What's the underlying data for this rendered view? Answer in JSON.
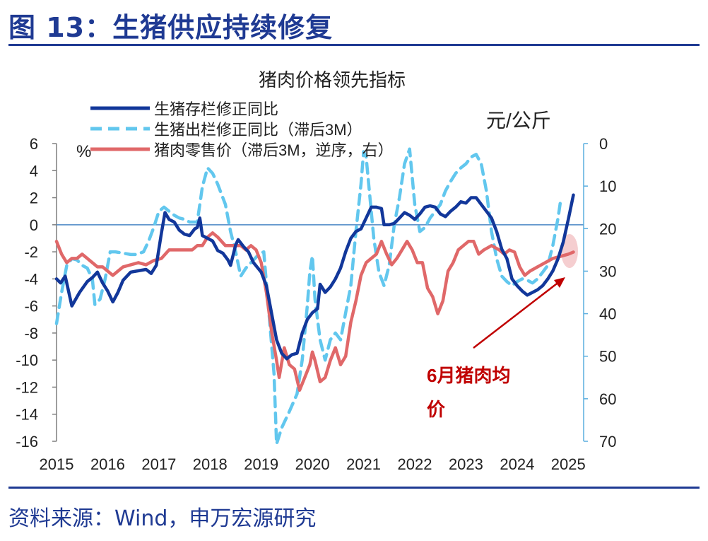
{
  "figure_title": "图 13：生猪供应持续修复",
  "source_note": "资料来源：Wind，申万宏源研究",
  "colors": {
    "accent": "#1f3a93",
    "series_inventory": "#12379a",
    "series_slaughter": "#62c7ee",
    "series_price": "#e06869",
    "annotation": "#c00000",
    "right_axis": "#5aaedf",
    "highlight": "#f3c5c8"
  },
  "annotation": {
    "line1": "6月猪肉均",
    "line2": "价"
  },
  "chart_data": {
    "type": "line",
    "title": "猪肉价格领先指标",
    "x_ticks": [
      "2015",
      "2016",
      "2017",
      "2018",
      "2019",
      "2020",
      "2021",
      "2022",
      "2023",
      "2024",
      "2025"
    ],
    "y_left": {
      "unit": "%",
      "ticks": [
        "6",
        "4",
        "2",
        "0",
        "-2",
        "-4",
        "-6",
        "-8",
        "-10",
        "-12",
        "-14",
        "-16"
      ],
      "range": [
        -16,
        6
      ]
    },
    "y_right": {
      "unit": "元/公斤",
      "ticks": [
        "0",
        "10",
        "20",
        "30",
        "40",
        "50",
        "60",
        "70"
      ],
      "range": [
        0,
        70
      ],
      "inverted": true
    },
    "series": [
      {
        "name": "生猪存栏修正同比",
        "axis": "left",
        "style": "solid",
        "points": [
          [
            2015.0,
            -4.0
          ],
          [
            2015.08,
            -4.3
          ],
          [
            2015.17,
            -3.8
          ],
          [
            2015.3,
            -6.0
          ],
          [
            2015.45,
            -5.0
          ],
          [
            2015.6,
            -4.2
          ],
          [
            2015.7,
            -3.9
          ],
          [
            2015.8,
            -3.5
          ],
          [
            2015.9,
            -4.3
          ],
          [
            2016.0,
            -4.9
          ],
          [
            2016.1,
            -5.7
          ],
          [
            2016.2,
            -5.0
          ],
          [
            2016.3,
            -4.1
          ],
          [
            2016.45,
            -3.5
          ],
          [
            2016.6,
            -3.4
          ],
          [
            2016.75,
            -3.3
          ],
          [
            2016.85,
            -3.6
          ],
          [
            2016.95,
            -3.0
          ],
          [
            2017.05,
            -0.6
          ],
          [
            2017.12,
            0.9
          ],
          [
            2017.2,
            0.4
          ],
          [
            2017.3,
            0.2
          ],
          [
            2017.4,
            -0.4
          ],
          [
            2017.5,
            -0.7
          ],
          [
            2017.6,
            -0.8
          ],
          [
            2017.7,
            -0.3
          ],
          [
            2017.75,
            -0.2
          ],
          [
            2017.8,
            0.5
          ],
          [
            2017.85,
            -0.8
          ],
          [
            2017.95,
            -1.0
          ],
          [
            2018.05,
            -1.2
          ],
          [
            2018.15,
            -1.9
          ],
          [
            2018.25,
            -2.1
          ],
          [
            2018.35,
            -2.6
          ],
          [
            2018.4,
            -3.0
          ],
          [
            2018.5,
            -1.5
          ],
          [
            2018.55,
            -1.1
          ],
          [
            2018.65,
            -1.6
          ],
          [
            2018.75,
            -2.0
          ],
          [
            2018.85,
            -2.8
          ],
          [
            2019.0,
            -3.5
          ],
          [
            2019.1,
            -4.5
          ],
          [
            2019.2,
            -6.5
          ],
          [
            2019.3,
            -8.5
          ],
          [
            2019.4,
            -9.5
          ],
          [
            2019.5,
            -9.9
          ],
          [
            2019.6,
            -9.6
          ],
          [
            2019.7,
            -9.5
          ],
          [
            2019.8,
            -8.0
          ],
          [
            2019.9,
            -7.0
          ],
          [
            2020.0,
            -6.5
          ],
          [
            2020.1,
            -6.2
          ],
          [
            2020.15,
            -4.4
          ],
          [
            2020.25,
            -5.0
          ],
          [
            2020.35,
            -4.6
          ],
          [
            2020.45,
            -4.0
          ],
          [
            2020.55,
            -3.2
          ],
          [
            2020.65,
            -2.0
          ],
          [
            2020.75,
            -1.0
          ],
          [
            2020.85,
            -0.5
          ],
          [
            2020.95,
            -0.3
          ],
          [
            2021.05,
            0.5
          ],
          [
            2021.15,
            1.3
          ],
          [
            2021.25,
            1.3
          ],
          [
            2021.35,
            1.2
          ],
          [
            2021.4,
            0.0
          ],
          [
            2021.5,
            0.0
          ],
          [
            2021.6,
            0.1
          ],
          [
            2021.7,
            0.5
          ],
          [
            2021.8,
            0.9
          ],
          [
            2021.9,
            0.7
          ],
          [
            2022.0,
            0.4
          ],
          [
            2022.1,
            0.8
          ],
          [
            2022.2,
            1.3
          ],
          [
            2022.3,
            1.4
          ],
          [
            2022.4,
            1.3
          ],
          [
            2022.5,
            0.8
          ],
          [
            2022.6,
            0.6
          ],
          [
            2022.7,
            1.0
          ],
          [
            2022.8,
            1.3
          ],
          [
            2022.9,
            1.7
          ],
          [
            2023.0,
            1.6
          ],
          [
            2023.1,
            2.0
          ],
          [
            2023.2,
            2.0
          ],
          [
            2023.3,
            1.5
          ],
          [
            2023.4,
            1.0
          ],
          [
            2023.5,
            0.5
          ],
          [
            2023.6,
            -0.5
          ],
          [
            2023.7,
            -1.8
          ],
          [
            2023.8,
            -2.5
          ],
          [
            2023.9,
            -4.0
          ],
          [
            2024.0,
            -4.5
          ],
          [
            2024.1,
            -4.9
          ],
          [
            2024.2,
            -5.2
          ],
          [
            2024.3,
            -5.0
          ],
          [
            2024.4,
            -4.8
          ],
          [
            2024.5,
            -4.5
          ],
          [
            2024.6,
            -4.0
          ],
          [
            2024.7,
            -3.4
          ],
          [
            2024.8,
            -2.5
          ],
          [
            2024.9,
            -1.3
          ],
          [
            2025.0,
            0.4
          ],
          [
            2025.1,
            2.2
          ]
        ]
      },
      {
        "name": "生猪出栏修正同比（滞后3M）",
        "axis": "left",
        "style": "dashed",
        "points": [
          [
            2015.0,
            -7.3
          ],
          [
            2015.1,
            -5.0
          ],
          [
            2015.2,
            -3.0
          ],
          [
            2015.3,
            -2.5
          ],
          [
            2015.4,
            -2.6
          ],
          [
            2015.5,
            -3.0
          ],
          [
            2015.6,
            -3.2
          ],
          [
            2015.7,
            -4.0
          ],
          [
            2015.75,
            -5.9
          ],
          [
            2015.85,
            -5.5
          ],
          [
            2015.95,
            -4.0
          ],
          [
            2016.05,
            -2.0
          ],
          [
            2016.15,
            -2.0
          ],
          [
            2016.3,
            -2.1
          ],
          [
            2016.45,
            -2.2
          ],
          [
            2016.55,
            -2.2
          ],
          [
            2016.7,
            -2.0
          ],
          [
            2016.8,
            -1.2
          ],
          [
            2016.9,
            -0.2
          ],
          [
            2017.0,
            1.0
          ],
          [
            2017.1,
            1.3
          ],
          [
            2017.2,
            1.0
          ],
          [
            2017.3,
            0.7
          ],
          [
            2017.4,
            0.5
          ],
          [
            2017.5,
            0.4
          ],
          [
            2017.6,
            0.2
          ],
          [
            2017.75,
            0.2
          ],
          [
            2017.85,
            2.8
          ],
          [
            2017.95,
            4.2
          ],
          [
            2018.05,
            3.8
          ],
          [
            2018.15,
            3.0
          ],
          [
            2018.3,
            1.5
          ],
          [
            2018.4,
            -0.5
          ],
          [
            2018.5,
            -2.0
          ],
          [
            2018.6,
            -3.8
          ],
          [
            2018.7,
            -3.2
          ],
          [
            2018.85,
            -2.6
          ],
          [
            2018.95,
            -2.2
          ],
          [
            2019.05,
            -2.0
          ],
          [
            2019.15,
            -6.5
          ],
          [
            2019.25,
            -11.0
          ],
          [
            2019.3,
            -16.2
          ],
          [
            2019.4,
            -15.0
          ],
          [
            2019.55,
            -13.8
          ],
          [
            2019.7,
            -12.5
          ],
          [
            2019.8,
            -10.0
          ],
          [
            2019.9,
            -6.0
          ],
          [
            2019.95,
            -3.5
          ],
          [
            2020.0,
            -2.3
          ],
          [
            2020.05,
            -5.5
          ],
          [
            2020.15,
            -8.5
          ],
          [
            2020.25,
            -10.0
          ],
          [
            2020.35,
            -8.5
          ],
          [
            2020.45,
            -8.0
          ],
          [
            2020.55,
            -8.5
          ],
          [
            2020.65,
            -6.5
          ],
          [
            2020.75,
            -4.5
          ],
          [
            2020.85,
            -0.5
          ],
          [
            2020.95,
            3.0
          ],
          [
            2021.0,
            5.4
          ],
          [
            2021.05,
            5.0
          ],
          [
            2021.1,
            3.0
          ],
          [
            2021.2,
            -1.0
          ],
          [
            2021.3,
            -3.5
          ],
          [
            2021.4,
            -4.5
          ],
          [
            2021.5,
            -3.0
          ],
          [
            2021.6,
            0.0
          ],
          [
            2021.7,
            2.0
          ],
          [
            2021.8,
            4.5
          ],
          [
            2021.9,
            5.6
          ],
          [
            2022.0,
            1.5
          ],
          [
            2022.1,
            -0.5
          ],
          [
            2022.2,
            -0.2
          ],
          [
            2022.3,
            0.5
          ],
          [
            2022.4,
            1.0
          ],
          [
            2022.5,
            1.5
          ],
          [
            2022.6,
            2.5
          ],
          [
            2022.7,
            3.2
          ],
          [
            2022.8,
            3.8
          ],
          [
            2022.9,
            4.2
          ],
          [
            2023.0,
            4.5
          ],
          [
            2023.1,
            5.0
          ],
          [
            2023.2,
            5.2
          ],
          [
            2023.3,
            4.5
          ],
          [
            2023.4,
            2.5
          ],
          [
            2023.5,
            -0.5
          ],
          [
            2023.6,
            -2.5
          ],
          [
            2023.7,
            -3.8
          ],
          [
            2023.8,
            -4.2
          ],
          [
            2023.9,
            -4.5
          ],
          [
            2024.0,
            -4.2
          ],
          [
            2024.1,
            -4.0
          ],
          [
            2024.2,
            -4.1
          ],
          [
            2024.3,
            -4.3
          ],
          [
            2024.4,
            -4.0
          ],
          [
            2024.5,
            -3.5
          ],
          [
            2024.6,
            -3.0
          ],
          [
            2024.7,
            -1.5
          ],
          [
            2024.8,
            0.5
          ],
          [
            2024.85,
            1.8
          ]
        ]
      },
      {
        "name": "猪肉零售价（滞后3M，逆序，右）",
        "axis": "right",
        "style": "solid",
        "points": [
          [
            2015.0,
            23
          ],
          [
            2015.1,
            26
          ],
          [
            2015.2,
            28
          ],
          [
            2015.3,
            27
          ],
          [
            2015.4,
            27
          ],
          [
            2015.5,
            26
          ],
          [
            2015.6,
            27
          ],
          [
            2015.7,
            28
          ],
          [
            2015.8,
            29
          ],
          [
            2015.9,
            29
          ],
          [
            2016.0,
            30
          ],
          [
            2016.1,
            31
          ],
          [
            2016.2,
            30
          ],
          [
            2016.3,
            29
          ],
          [
            2016.45,
            28.5
          ],
          [
            2016.6,
            28
          ],
          [
            2016.75,
            28.5
          ],
          [
            2016.9,
            27.5
          ],
          [
            2017.05,
            27
          ],
          [
            2017.2,
            25
          ],
          [
            2017.35,
            25
          ],
          [
            2017.5,
            25
          ],
          [
            2017.65,
            25
          ],
          [
            2017.75,
            24
          ],
          [
            2017.85,
            24
          ],
          [
            2017.95,
            22
          ],
          [
            2018.05,
            21
          ],
          [
            2018.15,
            22
          ],
          [
            2018.3,
            24
          ],
          [
            2018.45,
            24
          ],
          [
            2018.6,
            24
          ],
          [
            2018.7,
            25
          ],
          [
            2018.8,
            24
          ],
          [
            2018.9,
            25
          ],
          [
            2019.0,
            28
          ],
          [
            2019.1,
            35
          ],
          [
            2019.2,
            44
          ],
          [
            2019.3,
            51
          ],
          [
            2019.35,
            55
          ],
          [
            2019.45,
            48
          ],
          [
            2019.55,
            52
          ],
          [
            2019.65,
            53
          ],
          [
            2019.75,
            58
          ],
          [
            2019.85,
            55
          ],
          [
            2019.95,
            52
          ],
          [
            2020.0,
            49
          ],
          [
            2020.05,
            51
          ],
          [
            2020.15,
            56
          ],
          [
            2020.25,
            55
          ],
          [
            2020.35,
            51
          ],
          [
            2020.45,
            48
          ],
          [
            2020.55,
            52
          ],
          [
            2020.65,
            50
          ],
          [
            2020.75,
            42
          ],
          [
            2020.85,
            37
          ],
          [
            2020.95,
            31
          ],
          [
            2021.05,
            28
          ],
          [
            2021.15,
            27
          ],
          [
            2021.25,
            26
          ],
          [
            2021.35,
            23
          ],
          [
            2021.45,
            26
          ],
          [
            2021.55,
            28.5
          ],
          [
            2021.65,
            27
          ],
          [
            2021.75,
            25
          ],
          [
            2021.85,
            23
          ],
          [
            2021.95,
            25
          ],
          [
            2022.05,
            28
          ],
          [
            2022.15,
            28
          ],
          [
            2022.25,
            34
          ],
          [
            2022.35,
            36
          ],
          [
            2022.45,
            40
          ],
          [
            2022.55,
            37
          ],
          [
            2022.65,
            30
          ],
          [
            2022.75,
            28
          ],
          [
            2022.85,
            25
          ],
          [
            2022.95,
            24
          ],
          [
            2023.05,
            23
          ],
          [
            2023.15,
            23
          ],
          [
            2023.25,
            26
          ],
          [
            2023.35,
            25
          ],
          [
            2023.5,
            24
          ],
          [
            2023.65,
            25
          ],
          [
            2023.75,
            26
          ],
          [
            2023.85,
            25
          ],
          [
            2023.95,
            25.5
          ],
          [
            2024.05,
            29
          ],
          [
            2024.15,
            31
          ],
          [
            2024.25,
            30
          ],
          [
            2024.4,
            29
          ],
          [
            2024.55,
            28
          ],
          [
            2024.7,
            27
          ],
          [
            2024.85,
            26.5
          ],
          [
            2025.0,
            26
          ],
          [
            2025.1,
            25.5
          ]
        ]
      }
    ],
    "legend_position": "top-left",
    "grid": false
  }
}
